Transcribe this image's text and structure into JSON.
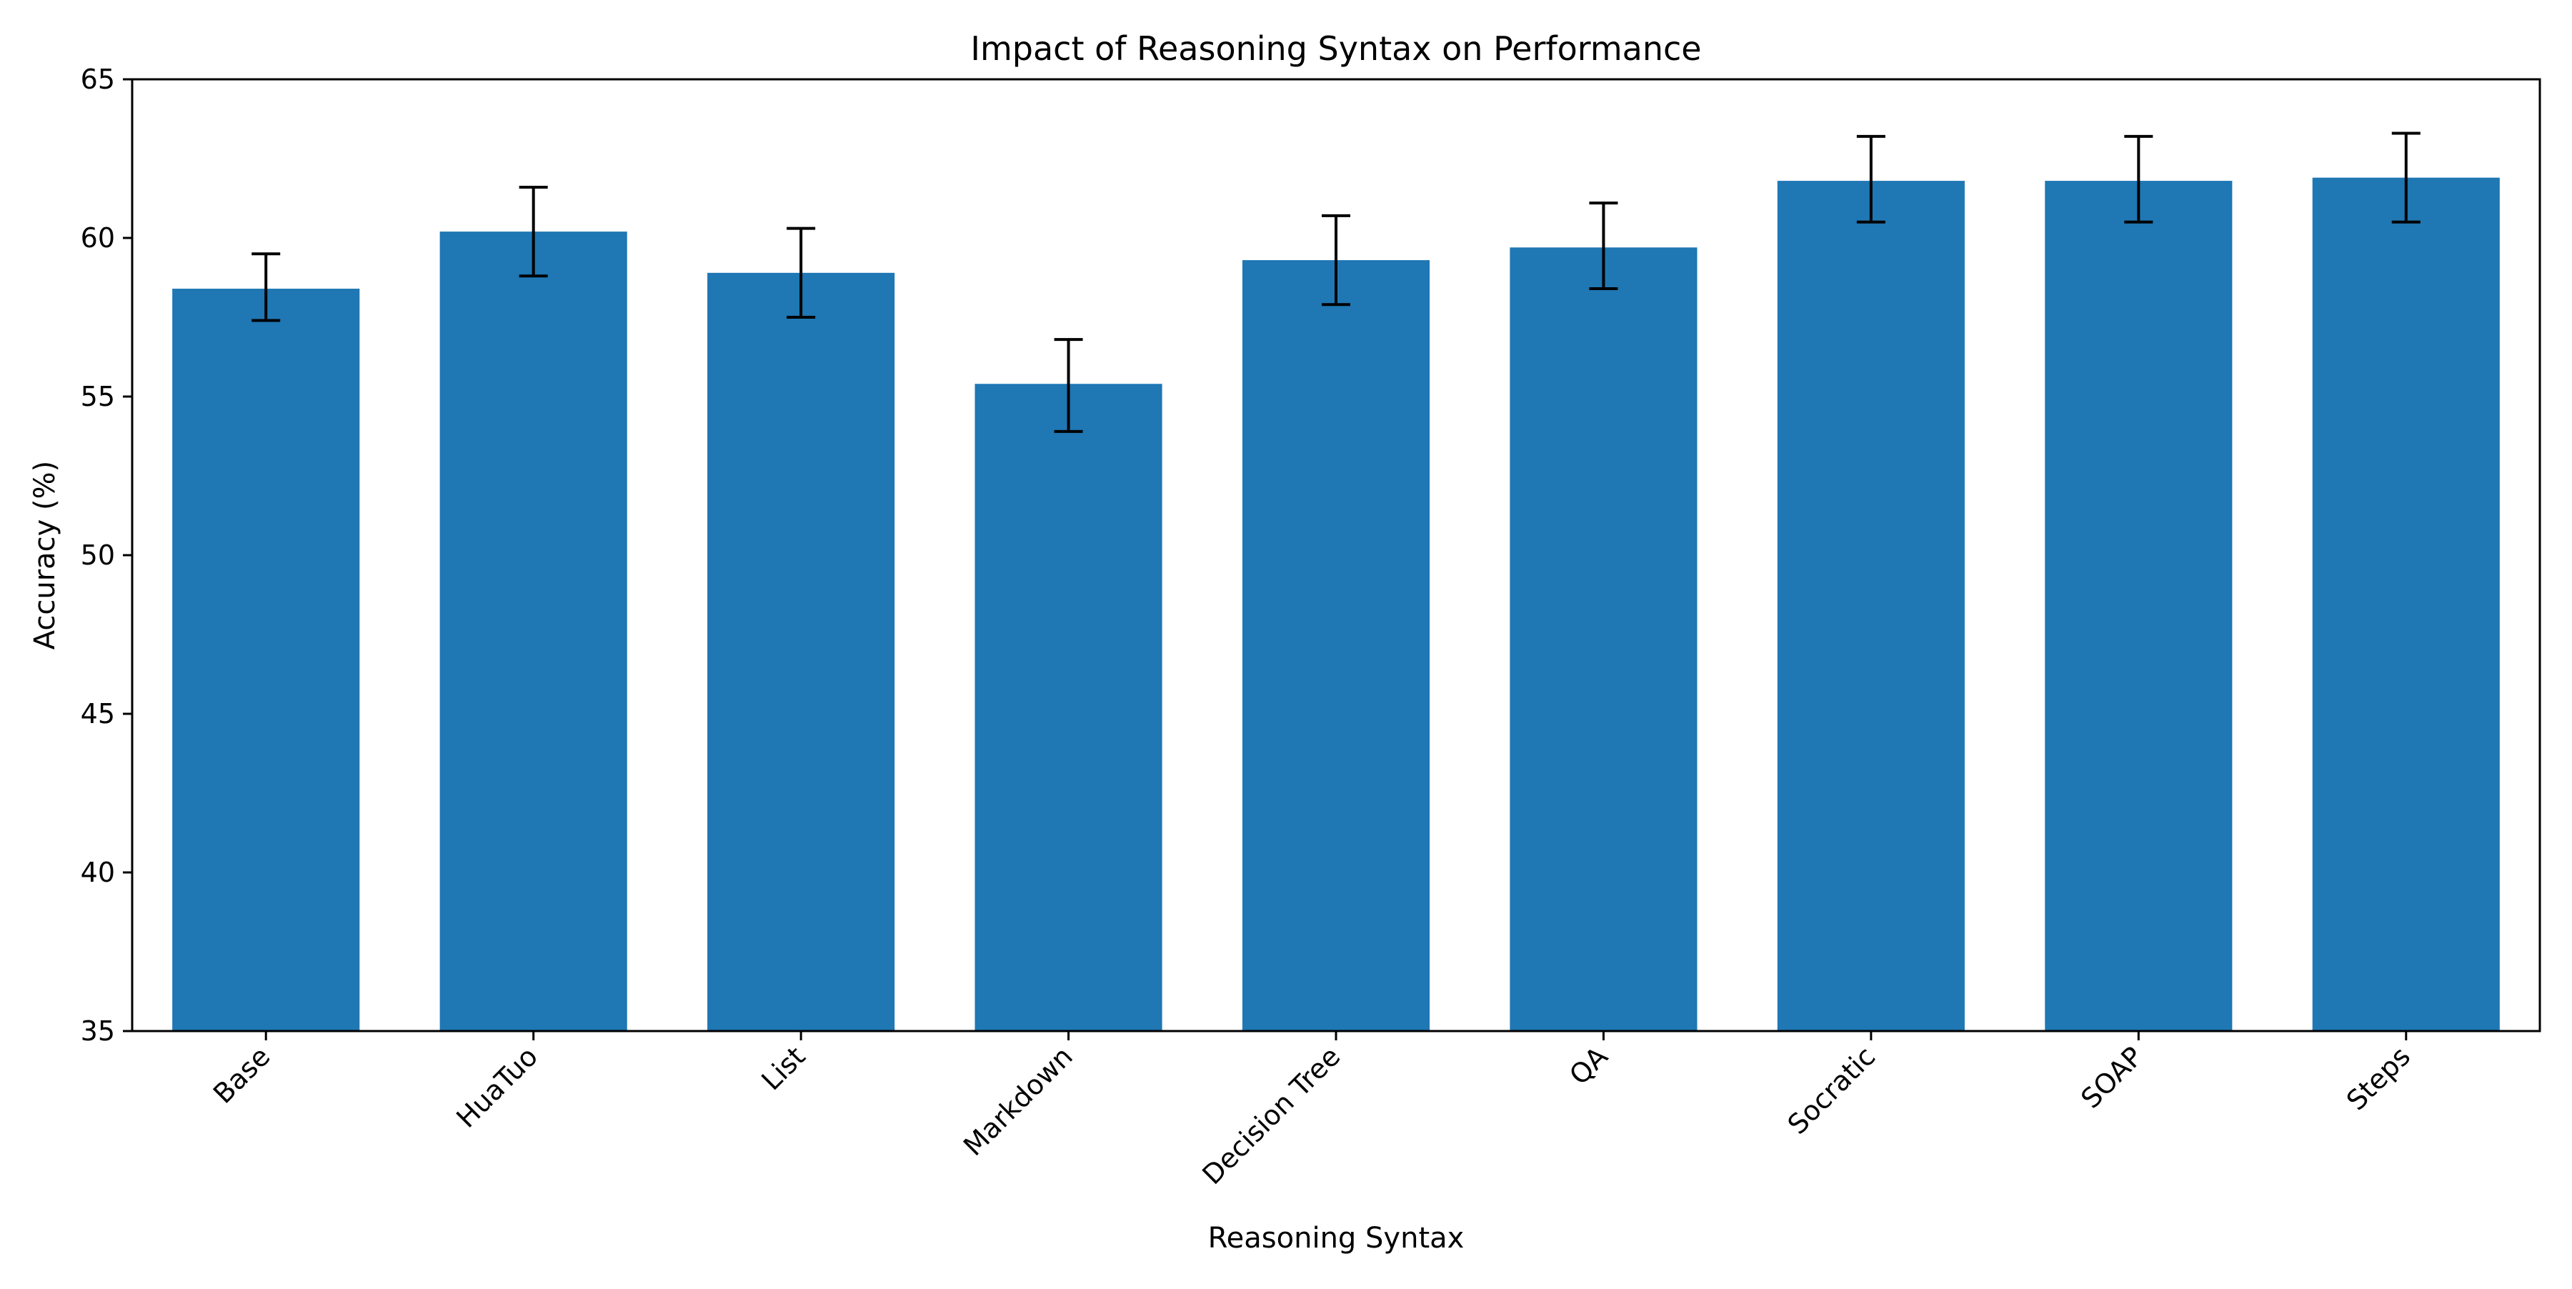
{
  "chart_data": {
    "type": "bar",
    "title": "Impact of Reasoning Syntax on Performance",
    "xlabel": "Reasoning Syntax",
    "ylabel": "Accuracy (%)",
    "ylim": [
      35,
      65
    ],
    "yticks": [
      35,
      40,
      45,
      50,
      55,
      60,
      65
    ],
    "grid": false,
    "legend": "none",
    "bar_color": "#1f77b4",
    "error_bar_color": "#000000",
    "categories": [
      "Base",
      "HuaTuo",
      "List",
      "Markdown",
      "Decision Tree",
      "QA",
      "Socratic",
      "SOAP",
      "Steps"
    ],
    "values": [
      58.4,
      60.2,
      58.9,
      55.4,
      59.3,
      59.7,
      61.8,
      61.8,
      61.9
    ],
    "error_low": [
      57.4,
      58.8,
      57.5,
      53.9,
      57.9,
      58.4,
      60.5,
      60.5,
      60.5
    ],
    "error_high": [
      59.5,
      61.6,
      60.3,
      56.8,
      60.7,
      61.1,
      63.2,
      63.2,
      63.3
    ]
  }
}
